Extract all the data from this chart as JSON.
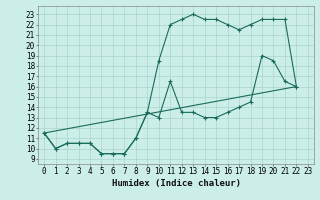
{
  "xlabel": "Humidex (Indice chaleur)",
  "bg_color": "#cceee8",
  "grid_color": "#aad4ce",
  "line_color": "#1a6b5a",
  "xlim": [
    -0.5,
    23.5
  ],
  "ylim": [
    8.5,
    23.8
  ],
  "yticks": [
    9,
    10,
    11,
    12,
    13,
    14,
    15,
    16,
    17,
    18,
    19,
    20,
    21,
    22,
    23
  ],
  "xticks": [
    0,
    1,
    2,
    3,
    4,
    5,
    6,
    7,
    8,
    9,
    10,
    11,
    12,
    13,
    14,
    15,
    16,
    17,
    18,
    19,
    20,
    21,
    22,
    23
  ],
  "line1_x": [
    0,
    1,
    2,
    3,
    4,
    5,
    6,
    7,
    8,
    9,
    10,
    11,
    12,
    13,
    14,
    15,
    16,
    17,
    18,
    19,
    20,
    21,
    22
  ],
  "line1_y": [
    11.5,
    10.0,
    10.5,
    10.5,
    10.5,
    9.5,
    9.5,
    9.5,
    11.0,
    13.5,
    18.5,
    22.0,
    22.5,
    23.0,
    22.5,
    22.5,
    22.0,
    21.5,
    22.0,
    22.5,
    22.5,
    22.5,
    16.0
  ],
  "line2_x": [
    0,
    1,
    2,
    3,
    4,
    5,
    6,
    7,
    8,
    9,
    10,
    11,
    12,
    13,
    14,
    15,
    16,
    17,
    18,
    19,
    20,
    21,
    22
  ],
  "line2_y": [
    11.5,
    10.0,
    10.5,
    10.5,
    10.5,
    9.5,
    9.5,
    9.5,
    11.0,
    13.5,
    13.0,
    16.5,
    13.5,
    13.5,
    13.0,
    13.0,
    13.5,
    14.0,
    14.5,
    19.0,
    18.5,
    16.5,
    16.0
  ],
  "line3_x": [
    0,
    22
  ],
  "line3_y": [
    11.5,
    16.0
  ]
}
